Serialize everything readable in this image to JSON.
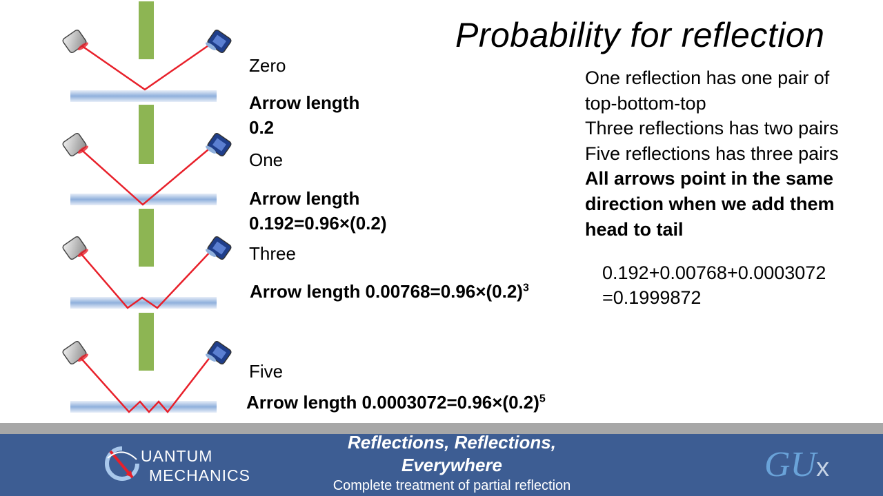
{
  "slide": {
    "title": "Probability for reflection"
  },
  "cases": [
    {
      "name": "Zero",
      "arrow_line1": "Arrow length",
      "arrow_line2": "0.2"
    },
    {
      "name": "One",
      "arrow_line1": "Arrow length",
      "arrow_line2": "0.192=0.96×(0.2)"
    },
    {
      "name": "Three",
      "arrow_text": "Arrow length 0.00768=0.96×(0.2)",
      "exponent": "3"
    },
    {
      "name": "Five",
      "arrow_text": "Arrow length 0.0003072=0.96×(0.2)",
      "exponent": "5"
    }
  ],
  "explanation": {
    "lines": [
      "One reflection has one pair of",
      "top-bottom-top",
      "Three reflections has two pairs",
      "Five reflections has three pairs"
    ],
    "bold_lines": [
      "All arrows point in the same",
      "direction when we add them",
      "head to tail"
    ]
  },
  "sum": {
    "line1": "0.192+0.00768+0.0003072",
    "line2": "=0.1999872"
  },
  "footer": {
    "logo_line1": "UANTUM",
    "logo_line2": "MECHANICS",
    "title_line1": "Reflections, Reflections,",
    "title_line2": "Everywhere",
    "subtitle": "Complete treatment of partial reflection",
    "brand_main": "GU",
    "brand_x": "x"
  },
  "colors": {
    "ray": "#e8202a",
    "glass": "#8fb0dc",
    "barrier": "#8db553",
    "footer_bg": "#3d5d93",
    "footer_stripe": "#a7a7a7"
  }
}
